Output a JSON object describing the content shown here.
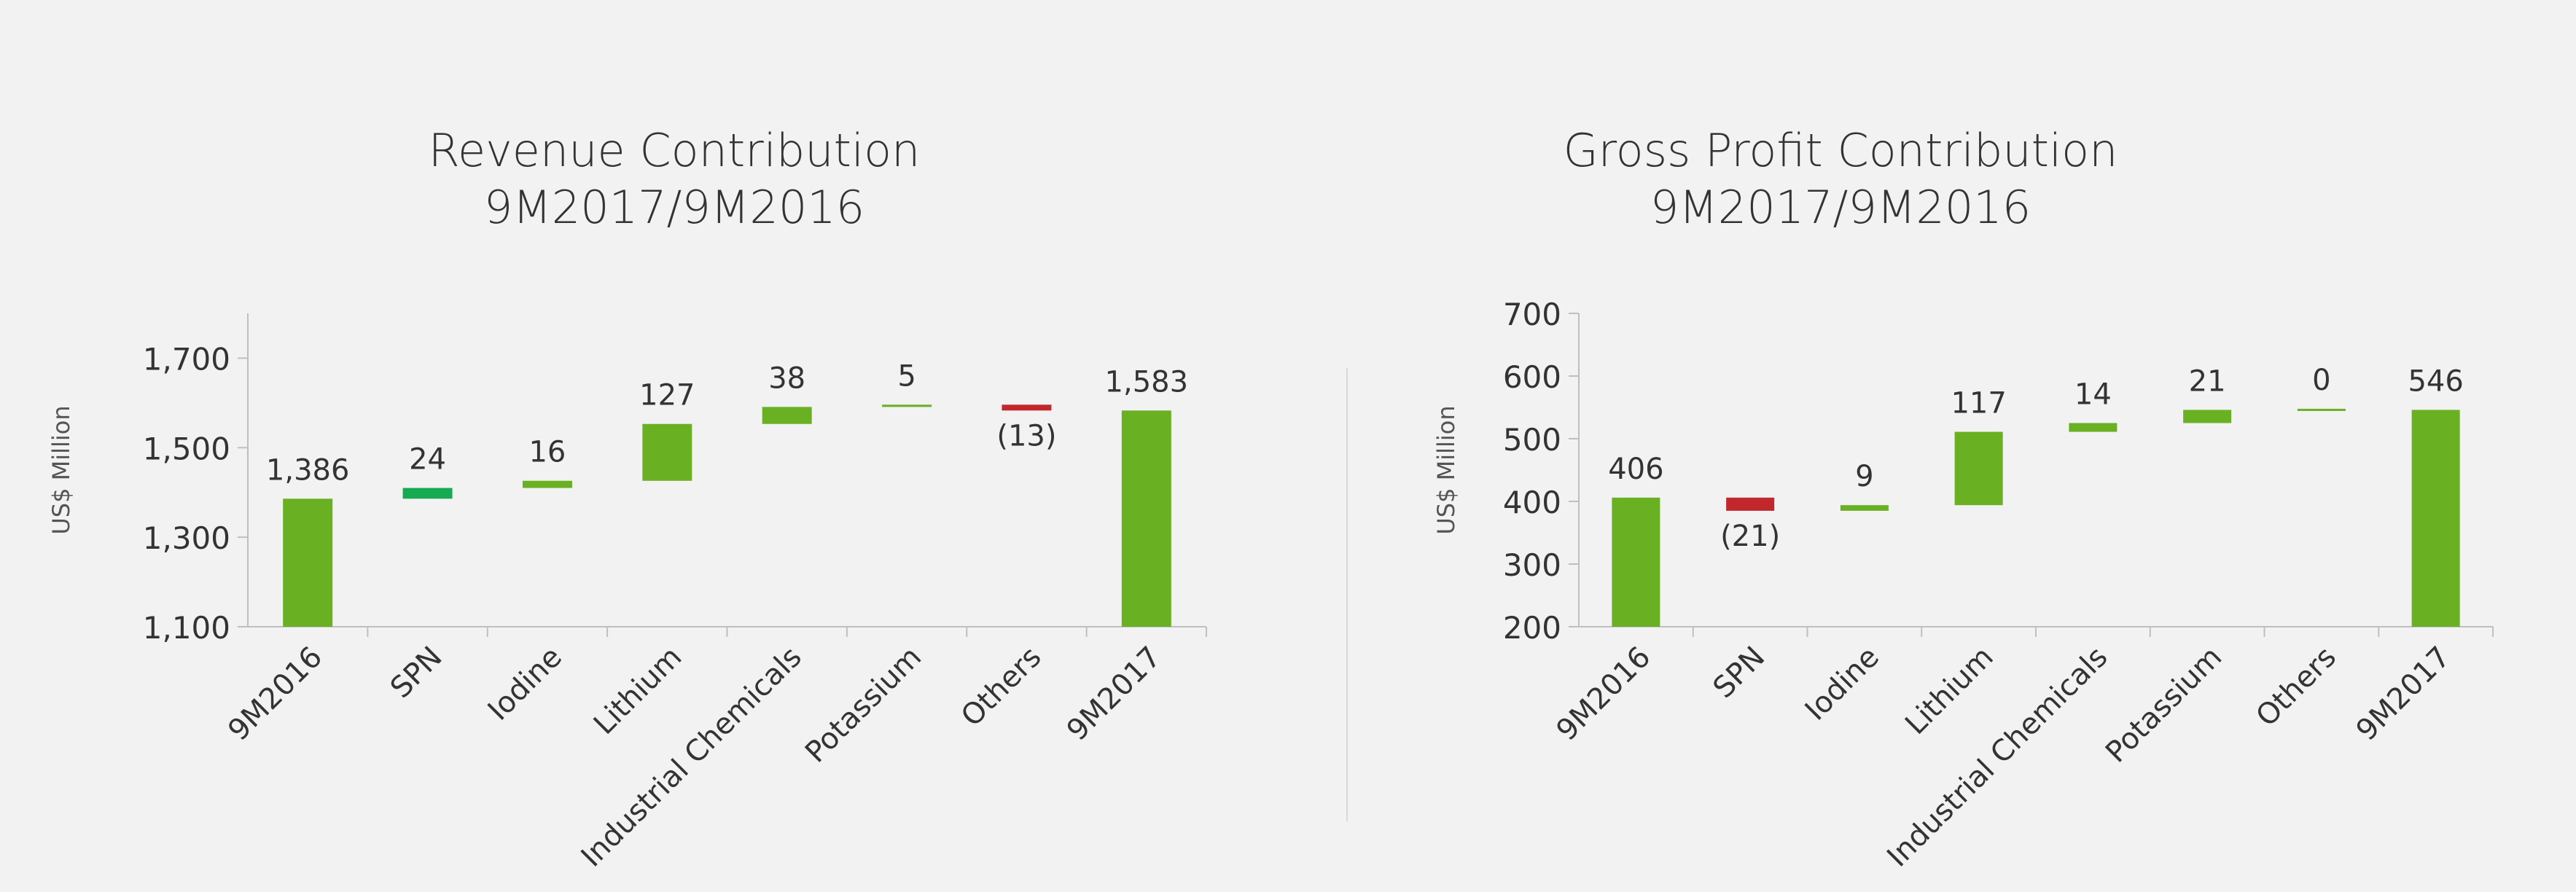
{
  "chart_data": [
    {
      "type": "bar",
      "subtype": "waterfall",
      "title": "Revenue Contribution",
      "subtitle": "9M2017/9M2016",
      "ylabel": "US$ Million",
      "ylim": [
        1100,
        1800
      ],
      "yticks": [
        1100,
        1300,
        1500,
        1700
      ],
      "ytick_labels": [
        "1,100",
        "1,300",
        "1,500",
        "1,700"
      ],
      "grid": false,
      "categories": [
        "9M2016",
        "SPN",
        "Iodine",
        "Lithium",
        "Industrial Chemicals",
        "Potassium",
        "Others",
        "9M2017"
      ],
      "values": [
        1386,
        24,
        16,
        127,
        38,
        5,
        -13,
        1583
      ],
      "kinds": [
        "total",
        "delta",
        "delta",
        "delta",
        "delta",
        "delta",
        "delta",
        "total"
      ],
      "value_labels": [
        "1,386",
        "24",
        "16",
        "127",
        "38",
        "5",
        "(13)",
        "1,583"
      ],
      "colors": {
        "total": "#6ab023",
        "increase": "#6ab023",
        "decrease": "#c0282d",
        "highlight": "#16aa52"
      },
      "bar_colors": [
        "#6ab023",
        "#16aa52",
        "#6ab023",
        "#6ab023",
        "#6ab023",
        "#6ab023",
        "#c0282d",
        "#6ab023"
      ]
    },
    {
      "type": "bar",
      "subtype": "waterfall",
      "title": "Gross Profit Contribution",
      "subtitle": "9M2017/9M2016",
      "ylabel": "US$ Million",
      "ylim": [
        200,
        700
      ],
      "yticks": [
        200,
        300,
        400,
        500,
        600,
        700
      ],
      "ytick_labels": [
        "200",
        "300",
        "400",
        "500",
        "600",
        "700"
      ],
      "grid": false,
      "categories": [
        "9M2016",
        "SPN",
        "Iodine",
        "Lithium",
        "Industrial Chemicals",
        "Potassium",
        "Others",
        "9M2017"
      ],
      "values": [
        406,
        -21,
        9,
        117,
        14,
        21,
        0,
        546
      ],
      "kinds": [
        "total",
        "delta",
        "delta",
        "delta",
        "delta",
        "delta",
        "delta",
        "total"
      ],
      "value_labels": [
        "406",
        "(21)",
        "9",
        "117",
        "14",
        "21",
        "0",
        "546"
      ],
      "colors": {
        "total": "#6ab023",
        "increase": "#6ab023",
        "decrease": "#c0282d"
      },
      "bar_colors": [
        "#6ab023",
        "#c0282d",
        "#6ab023",
        "#6ab023",
        "#6ab023",
        "#6ab023",
        "#6ab023",
        "#6ab023"
      ]
    }
  ]
}
